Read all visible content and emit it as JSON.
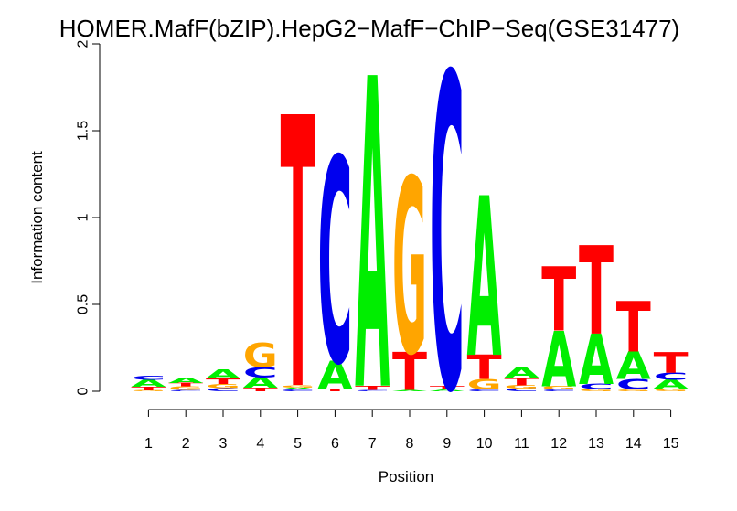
{
  "chart_data": {
    "type": "sequence-logo",
    "title": "HOMER.MafF(bZIP).HepG2−MafF−ChIP−Seq(GSE31477)",
    "xlabel": "Position",
    "ylabel": "Information content",
    "ylim": [
      0,
      2
    ],
    "yticks": [
      {
        "value": 0,
        "label": "0"
      },
      {
        "value": 0.5,
        "label": "0.5"
      },
      {
        "value": 1,
        "label": "1"
      },
      {
        "value": 1.5,
        "label": "1.5"
      },
      {
        "value": 2,
        "label": "2"
      }
    ],
    "colors": {
      "A": "#00ee00",
      "C": "#0000ee",
      "G": "#ffa500",
      "T": "#ff0000"
    },
    "positions": [
      {
        "label": "1",
        "stack": [
          {
            "b": "G",
            "v": 0.006
          },
          {
            "b": "T",
            "v": 0.02
          },
          {
            "b": "A",
            "v": 0.04
          },
          {
            "b": "C",
            "v": 0.025
          }
        ]
      },
      {
        "label": "2",
        "stack": [
          {
            "b": "C",
            "v": 0.008
          },
          {
            "b": "G",
            "v": 0.02
          },
          {
            "b": "T",
            "v": 0.02
          },
          {
            "b": "A",
            "v": 0.03
          }
        ]
      },
      {
        "label": "3",
        "stack": [
          {
            "b": "C",
            "v": 0.018
          },
          {
            "b": "G",
            "v": 0.025
          },
          {
            "b": "T",
            "v": 0.03
          },
          {
            "b": "A",
            "v": 0.05
          }
        ]
      },
      {
        "label": "4",
        "stack": [
          {
            "b": "T",
            "v": 0.02
          },
          {
            "b": "A",
            "v": 0.06
          },
          {
            "b": "C",
            "v": 0.06
          },
          {
            "b": "G",
            "v": 0.14
          }
        ]
      },
      {
        "label": "5",
        "stack": [
          {
            "b": "C",
            "v": 0.01
          },
          {
            "b": "A",
            "v": 0.012
          },
          {
            "b": "G",
            "v": 0.015
          },
          {
            "b": "T",
            "v": 1.56
          }
        ]
      },
      {
        "label": "6",
        "stack": [
          {
            "b": "T",
            "v": 0.015
          },
          {
            "b": "A",
            "v": 0.16
          },
          {
            "b": "C",
            "v": 1.18
          }
        ]
      },
      {
        "label": "7",
        "stack": [
          {
            "b": "C",
            "v": 0.008
          },
          {
            "b": "T",
            "v": 0.025
          },
          {
            "b": "A",
            "v": 1.79
          }
        ]
      },
      {
        "label": "8",
        "stack": [
          {
            "b": "A",
            "v": 0.008
          },
          {
            "b": "T",
            "v": 0.22
          },
          {
            "b": "G",
            "v": 1.01
          }
        ]
      },
      {
        "label": "9",
        "stack": [
          {
            "b": "A",
            "v": 0.01
          },
          {
            "b": "T",
            "v": 0.02
          },
          {
            "b": "C",
            "v": 1.81
          }
        ]
      },
      {
        "label": "10",
        "stack": [
          {
            "b": "C",
            "v": 0.01
          },
          {
            "b": "G",
            "v": 0.06
          },
          {
            "b": "T",
            "v": 0.14
          },
          {
            "b": "A",
            "v": 0.92
          }
        ]
      },
      {
        "label": "11",
        "stack": [
          {
            "b": "C",
            "v": 0.015
          },
          {
            "b": "G",
            "v": 0.02
          },
          {
            "b": "T",
            "v": 0.045
          },
          {
            "b": "A",
            "v": 0.06
          }
        ]
      },
      {
        "label": "12",
        "stack": [
          {
            "b": "C",
            "v": 0.01
          },
          {
            "b": "G",
            "v": 0.02
          },
          {
            "b": "A",
            "v": 0.32
          },
          {
            "b": "T",
            "v": 0.37
          }
        ]
      },
      {
        "label": "13",
        "stack": [
          {
            "b": "G",
            "v": 0.012
          },
          {
            "b": "C",
            "v": 0.03
          },
          {
            "b": "A",
            "v": 0.29
          },
          {
            "b": "T",
            "v": 0.51
          }
        ]
      },
      {
        "label": "14",
        "stack": [
          {
            "b": "G",
            "v": 0.01
          },
          {
            "b": "C",
            "v": 0.06
          },
          {
            "b": "A",
            "v": 0.16
          },
          {
            "b": "T",
            "v": 0.29
          }
        ]
      },
      {
        "label": "15",
        "stack": [
          {
            "b": "G",
            "v": 0.015
          },
          {
            "b": "A",
            "v": 0.05
          },
          {
            "b": "C",
            "v": 0.04
          },
          {
            "b": "T",
            "v": 0.12
          }
        ]
      }
    ]
  }
}
